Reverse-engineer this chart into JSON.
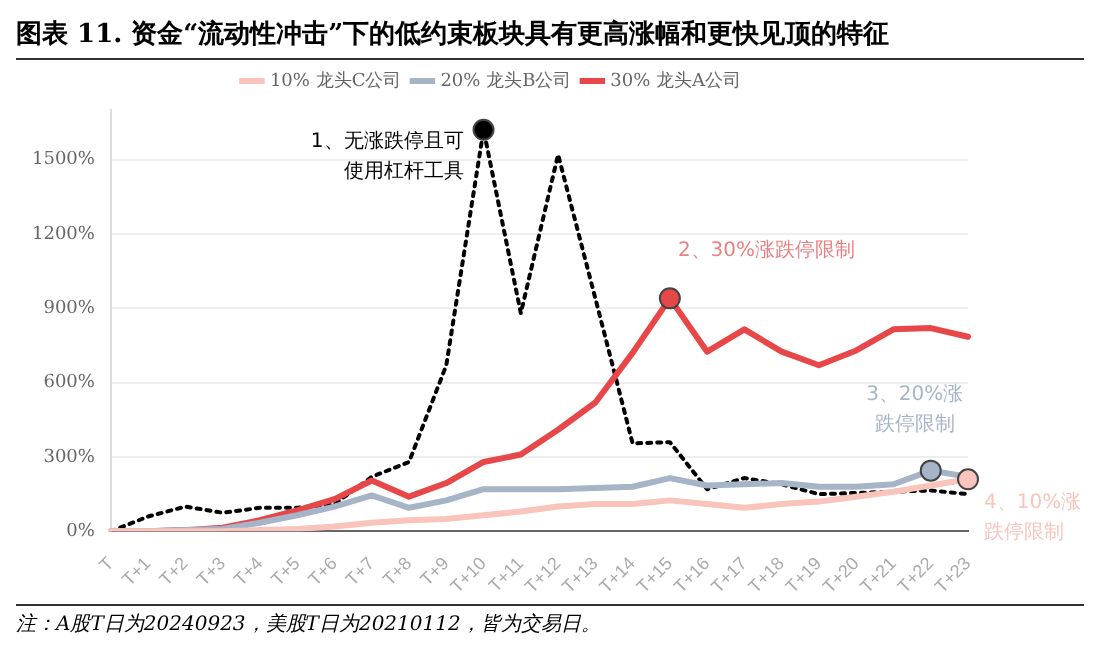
{
  "chart_data": {
    "type": "line",
    "title": "图表 11. 资金“流动性冲击”下的低约束板块具有更高涨幅和更快见顶的特征",
    "categories": [
      "T",
      "T+1",
      "T+2",
      "T+3",
      "T+4",
      "T+5",
      "T+6",
      "T+7",
      "T+8",
      "T+9",
      "T+10",
      "T+11",
      "T+12",
      "T+13",
      "T+14",
      "T+15",
      "T+16",
      "T+17",
      "T+18",
      "T+19",
      "T+20",
      "T+21",
      "T+22",
      "T+23"
    ],
    "series": [
      {
        "name": "10% 龙头C公司",
        "color": "#f8c4bc",
        "values": [
          0,
          0,
          0,
          0,
          5,
          10,
          20,
          35,
          45,
          50,
          65,
          80,
          100,
          110,
          110,
          125,
          110,
          95,
          110,
          120,
          140,
          160,
          185,
          210
        ]
      },
      {
        "name": "20% 龙头B公司",
        "color": "#a6b4c8",
        "values": [
          0,
          0,
          5,
          10,
          35,
          65,
          100,
          145,
          95,
          125,
          170,
          170,
          170,
          175,
          180,
          215,
          185,
          190,
          195,
          180,
          180,
          190,
          245,
          220
        ]
      },
      {
        "name": "30% 龙头A公司",
        "color": "#e8474a",
        "values": [
          0,
          0,
          5,
          15,
          45,
          85,
          130,
          205,
          140,
          195,
          280,
          310,
          410,
          520,
          720,
          940,
          725,
          815,
          725,
          670,
          730,
          815,
          820,
          785
        ]
      },
      {
        "color": "#000000",
        "line_style": "dotted",
        "values": [
          0,
          60,
          100,
          75,
          95,
          95,
          110,
          220,
          280,
          670,
          1620,
          880,
          1520,
          940,
          355,
          360,
          170,
          215,
          190,
          150,
          155,
          160,
          165,
          150
        ]
      }
    ],
    "ylim": [
      0,
      1700
    ],
    "yticks": [
      {
        "value": 0,
        "label": "0%"
      },
      {
        "value": 300,
        "label": "300%"
      },
      {
        "value": 600,
        "label": "600%"
      },
      {
        "value": 900,
        "label": "900%"
      },
      {
        "value": 1200,
        "label": "1200%"
      },
      {
        "value": 1500,
        "label": "1500%"
      }
    ],
    "grid": "y",
    "legend": "top",
    "marker": "none",
    "line_style": "solid",
    "annotations": [
      {
        "text": "1、无涨跌停且可使用杠杆工具",
        "x": "T+10",
        "y": 1620
      },
      {
        "text": "2、30%涨跌停限制",
        "x": "T+15",
        "y": 940
      },
      {
        "text": "3、20%涨跌停限制",
        "x": "T+22",
        "y": 245
      },
      {
        "text": "4、10%涨跌停限制",
        "x": "T+23",
        "y": 210
      },
      "注：A股T日为20240923，美股T日为20210112，皆为交易日。"
    ]
  }
}
